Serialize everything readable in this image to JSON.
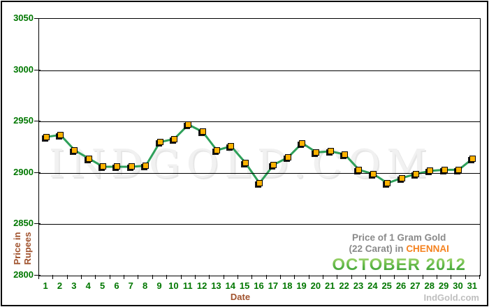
{
  "watermark": "INDGOLD.COM",
  "brand": "IndGold.com",
  "chart_data": {
    "type": "line",
    "title": "Price of 1 Gram Gold (22 Carat) in CHENNAI - OCTOBER 2012",
    "xlabel": "Date",
    "ylabel_line1": "Price in",
    "ylabel_line2": "Rupees",
    "ylim": [
      2800,
      3050
    ],
    "yticks": [
      3050,
      3000,
      2950,
      2900,
      2850,
      2800
    ],
    "grid": true,
    "legend": false,
    "x": [
      1,
      2,
      3,
      4,
      5,
      6,
      7,
      8,
      9,
      10,
      11,
      12,
      13,
      14,
      15,
      16,
      17,
      18,
      19,
      20,
      21,
      22,
      23,
      24,
      25,
      26,
      27,
      28,
      29,
      30,
      31
    ],
    "values": [
      2935,
      2937,
      2922,
      2914,
      2906,
      2906,
      2906,
      2907,
      2930,
      2933,
      2947,
      2940,
      2922,
      2926,
      2910,
      2890,
      2908,
      2915,
      2929,
      2920,
      2921,
      2918,
      2903,
      2899,
      2890,
      2895,
      2899,
      2902,
      2903,
      2903,
      2914
    ],
    "annotation": {
      "line1": "Price of 1 Gram Gold",
      "line2_prefix": "(22 Carat) in ",
      "city": "CHENNAI",
      "period": "OCTOBER 2012"
    },
    "colors": {
      "line": "#2EA05A",
      "marker": "#FFB200",
      "axis_labels": "#007700",
      "axis_titles": "#A0522D",
      "annotation_gray": "#8A8A8A",
      "city_orange": "#F5821F",
      "month_green": "#2F9E38",
      "brand_gray": "#BFBFBF"
    }
  }
}
